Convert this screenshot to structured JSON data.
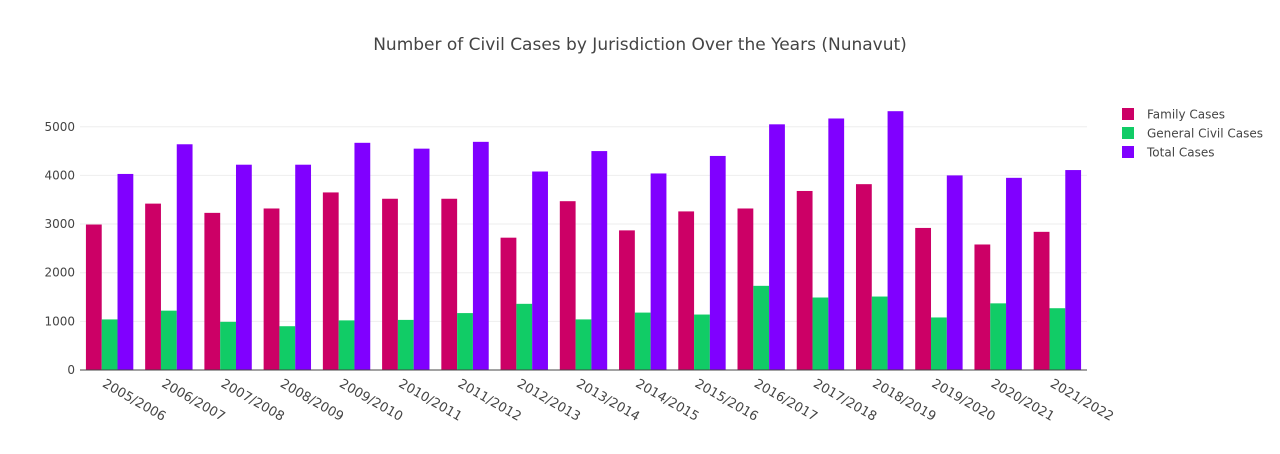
{
  "chart_data": {
    "type": "bar",
    "title": "Number of Civil Cases by Jurisdiction Over the Years (Nunavut)",
    "xlabel": "",
    "ylabel": "",
    "ylim": [
      0,
      5550
    ],
    "yticks": [
      0,
      1000,
      2000,
      3000,
      4000,
      5000
    ],
    "legend_position": "top-right",
    "grid": true,
    "categories": [
      "2005/2006",
      "2006/2007",
      "2007/2008",
      "2008/2009",
      "2009/2010",
      "2010/2011",
      "2011/2012",
      "2012/2013",
      "2013/2014",
      "2014/2015",
      "2015/2016",
      "2016/2017",
      "2017/2018",
      "2018/2019",
      "2019/2020",
      "2020/2021",
      "2021/2022"
    ],
    "series": [
      {
        "name": "Family Cases",
        "color": "#cc0066",
        "values": [
          2990,
          3420,
          3230,
          3320,
          3650,
          3520,
          3520,
          2720,
          3470,
          2870,
          3260,
          3320,
          3680,
          3820,
          2920,
          2580,
          2840
        ]
      },
      {
        "name": "General Civil Cases",
        "color": "#11cc66",
        "values": [
          1040,
          1220,
          990,
          900,
          1020,
          1030,
          1170,
          1360,
          1040,
          1180,
          1140,
          1730,
          1490,
          1510,
          1080,
          1370,
          1270
        ]
      },
      {
        "name": "Total Cases",
        "color": "#8000ff",
        "values": [
          4030,
          4640,
          4220,
          4220,
          4670,
          4550,
          4690,
          4080,
          4500,
          4040,
          4400,
          5050,
          5170,
          5320,
          4000,
          3950,
          4110
        ]
      }
    ]
  }
}
